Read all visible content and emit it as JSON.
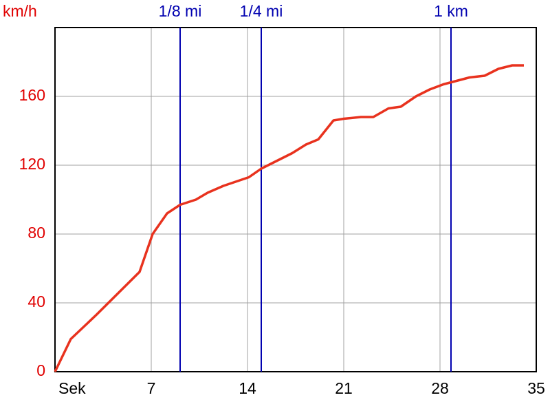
{
  "chart_data": {
    "type": "line",
    "ylabel": "km/h",
    "x": [
      0,
      1.15,
      3,
      6.15,
      7.1,
      8.15,
      9.1,
      10.25,
      11.1,
      12.25,
      14.1,
      15,
      16,
      17.25,
      18.25,
      19.15,
      20.25,
      21,
      22.25,
      23.15,
      24.25,
      25.15,
      26.25,
      27.25,
      28.25,
      30.15,
      31.25,
      32.25,
      33.25,
      34.1
    ],
    "values": [
      0,
      19,
      33,
      58,
      80,
      92,
      97,
      100,
      104,
      108,
      113,
      118,
      122,
      127,
      132,
      135,
      146,
      147,
      148,
      148,
      153,
      154,
      160,
      164,
      167,
      171,
      172,
      176,
      178,
      178
    ],
    "color": "#e8321e",
    "xlim": [
      0,
      35
    ],
    "xticks": [
      {
        "value": 0,
        "label": "Sek"
      },
      7,
      14,
      21,
      28,
      35
    ],
    "ylim": [
      0,
      200
    ],
    "yticks": [
      0,
      40,
      80,
      120,
      160
    ],
    "grid": true,
    "markers": [
      {
        "label": "1/8 mi",
        "x": 9.1
      },
      {
        "label": "1/4 mi",
        "x": 15
      },
      {
        "label": "1 km",
        "x": 28.8
      }
    ],
    "marker_color": "#0000b0",
    "ytick_color": "#e00000"
  }
}
